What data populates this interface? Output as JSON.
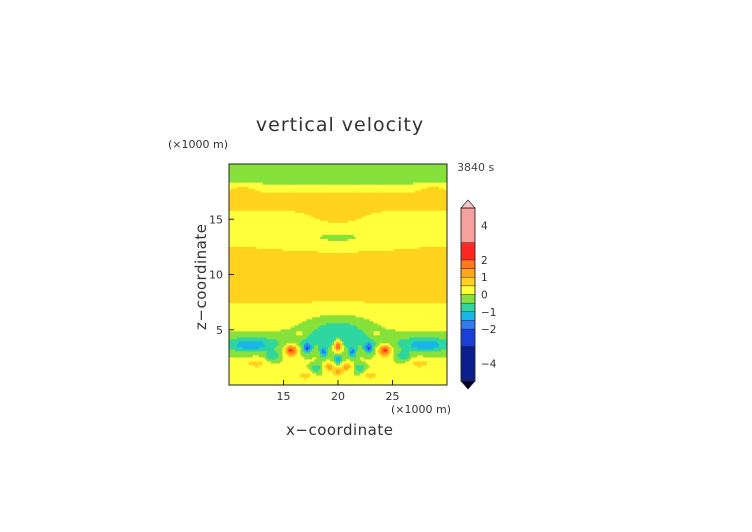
{
  "chart_data": {
    "type": "heatmap",
    "title": "vertical velocity",
    "time_label": "3840 s",
    "xlabel": "x−coordinate",
    "ylabel": "z−coordinate",
    "x_unit": "(×1000 m)",
    "y_unit": "(×1000 m)",
    "xlim": [
      10,
      30
    ],
    "ylim": [
      0,
      20
    ],
    "x_ticks": [
      15,
      20,
      25
    ],
    "x_tick_labels": [
      "15",
      "20",
      "25"
    ],
    "y_ticks": [
      5,
      10,
      15
    ],
    "y_tick_labels": [
      "5",
      "10",
      "15"
    ],
    "colorbar": {
      "range": [
        -5,
        5
      ],
      "ticks": [
        4,
        2,
        1,
        0,
        -1,
        -2,
        -4
      ],
      "tick_labels": [
        "4",
        "2",
        "1",
        "0",
        "−1",
        "−2",
        "−4"
      ],
      "bands": [
        {
          "from": -5.0,
          "to": -3.0,
          "color": "#0a1e8c"
        },
        {
          "from": -3.0,
          "to": -2.0,
          "color": "#1a3fd6"
        },
        {
          "from": -2.0,
          "to": -1.5,
          "color": "#2d7cf2"
        },
        {
          "from": -1.5,
          "to": -1.0,
          "color": "#19b7e8"
        },
        {
          "from": -1.0,
          "to": -0.5,
          "color": "#2fd6a0"
        },
        {
          "from": -0.5,
          "to": 0.0,
          "color": "#86e23b"
        },
        {
          "from": 0.0,
          "to": 0.5,
          "color": "#ffff3c"
        },
        {
          "from": 0.5,
          "to": 1.0,
          "color": "#ffd21e"
        },
        {
          "from": 1.0,
          "to": 1.5,
          "color": "#ffa519"
        },
        {
          "from": 1.5,
          "to": 2.0,
          "color": "#ff7a1e"
        },
        {
          "from": 2.0,
          "to": 3.0,
          "color": "#ff2820"
        },
        {
          "from": 3.0,
          "to": 5.0,
          "color": "#f7a0a0"
        }
      ],
      "over_color": "#f7c8c8",
      "under_color": "#000033"
    },
    "field_features": [
      {
        "x": 20.0,
        "z": 3.6,
        "sx": 0.35,
        "sz": 0.5,
        "w": 2.6
      },
      {
        "x": 20.0,
        "z": 2.4,
        "sx": 0.4,
        "sz": 0.35,
        "w": -1.6
      },
      {
        "x": 20.0,
        "z": 1.2,
        "sx": 0.5,
        "sz": 0.4,
        "w": 1.2
      },
      {
        "x": 15.7,
        "z": 3.2,
        "sx": 0.55,
        "sz": 0.5,
        "w": 2.4
      },
      {
        "x": 24.3,
        "z": 3.2,
        "sx": 0.55,
        "sz": 0.5,
        "w": 2.4
      },
      {
        "x": 17.2,
        "z": 3.4,
        "sx": 0.4,
        "sz": 0.45,
        "w": -1.8
      },
      {
        "x": 22.8,
        "z": 3.4,
        "sx": 0.4,
        "sz": 0.45,
        "w": -1.8
      },
      {
        "x": 18.7,
        "z": 3.0,
        "sx": 0.35,
        "sz": 0.45,
        "w": -1.6
      },
      {
        "x": 21.3,
        "z": 3.0,
        "sx": 0.35,
        "sz": 0.45,
        "w": -1.6
      },
      {
        "x": 19.2,
        "z": 1.7,
        "sx": 0.4,
        "sz": 0.35,
        "w": 1.3
      },
      {
        "x": 20.8,
        "z": 1.7,
        "sx": 0.4,
        "sz": 0.35,
        "w": 1.3
      },
      {
        "x": 18.0,
        "z": 1.6,
        "sx": 0.45,
        "sz": 0.35,
        "w": -0.9
      },
      {
        "x": 22.0,
        "z": 1.6,
        "sx": 0.45,
        "sz": 0.35,
        "w": -0.9
      },
      {
        "x": 17.0,
        "z": 0.9,
        "sx": 0.6,
        "sz": 0.35,
        "w": 0.9
      },
      {
        "x": 23.0,
        "z": 0.9,
        "sx": 0.6,
        "sz": 0.35,
        "w": 0.9
      },
      {
        "x": 12.0,
        "z": 3.6,
        "sx": 1.8,
        "sz": 0.6,
        "w": -1.1
      },
      {
        "x": 28.0,
        "z": 3.6,
        "sx": 1.8,
        "sz": 0.6,
        "w": -1.1
      },
      {
        "x": 12.5,
        "z": 2.0,
        "sx": 1.2,
        "sz": 0.45,
        "w": 0.7
      },
      {
        "x": 27.5,
        "z": 2.0,
        "sx": 1.2,
        "sz": 0.45,
        "w": 0.7
      },
      {
        "x": 14.0,
        "z": 2.6,
        "sx": 0.6,
        "sz": 0.45,
        "w": -1.0
      },
      {
        "x": 26.0,
        "z": 2.6,
        "sx": 0.6,
        "sz": 0.45,
        "w": -1.0
      },
      {
        "x": 16.5,
        "z": 4.6,
        "sx": 0.5,
        "sz": 0.35,
        "w": 0.5
      },
      {
        "x": 23.5,
        "z": 4.6,
        "sx": 0.5,
        "sz": 0.35,
        "w": 0.5
      },
      {
        "x": 20.0,
        "z": 15.4,
        "sx": 2.2,
        "sz": 0.85,
        "w": 0.35
      },
      {
        "x": 11.3,
        "z": 18.0,
        "sx": 1.4,
        "sz": 0.55,
        "w": 0.3
      },
      {
        "x": 28.7,
        "z": 18.0,
        "sx": 1.4,
        "sz": 0.55,
        "w": 0.3
      }
    ]
  }
}
